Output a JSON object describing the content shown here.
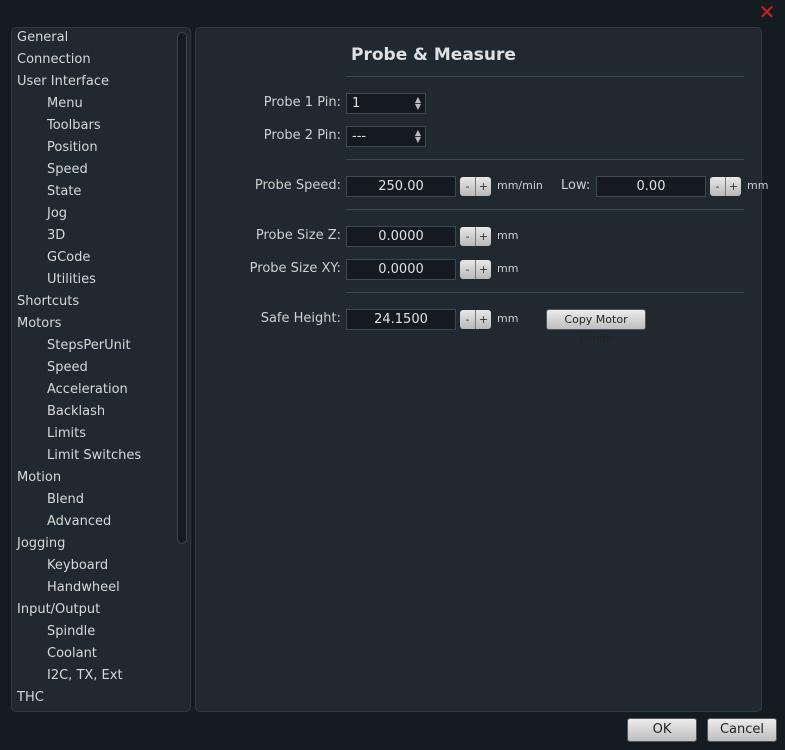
{
  "window": {
    "close_icon": "close-x",
    "close_color": "#d02020"
  },
  "sidebar": {
    "items": [
      {
        "label": "General",
        "sub": false
      },
      {
        "label": "Connection",
        "sub": false
      },
      {
        "label": "User Interface",
        "sub": false
      },
      {
        "label": "Menu",
        "sub": true
      },
      {
        "label": "Toolbars",
        "sub": true
      },
      {
        "label": "Position",
        "sub": true
      },
      {
        "label": "Speed",
        "sub": true
      },
      {
        "label": "State",
        "sub": true
      },
      {
        "label": "Jog",
        "sub": true
      },
      {
        "label": "3D",
        "sub": true
      },
      {
        "label": "GCode",
        "sub": true
      },
      {
        "label": "Utilities",
        "sub": true
      },
      {
        "label": "Shortcuts",
        "sub": false
      },
      {
        "label": "Motors",
        "sub": false
      },
      {
        "label": "StepsPerUnit",
        "sub": true
      },
      {
        "label": "Speed",
        "sub": true
      },
      {
        "label": "Acceleration",
        "sub": true
      },
      {
        "label": "Backlash",
        "sub": true
      },
      {
        "label": "Limits",
        "sub": true
      },
      {
        "label": "Limit Switches",
        "sub": true
      },
      {
        "label": "Motion",
        "sub": false
      },
      {
        "label": "Blend",
        "sub": true
      },
      {
        "label": "Advanced",
        "sub": true
      },
      {
        "label": "Jogging",
        "sub": false
      },
      {
        "label": "Keyboard",
        "sub": true
      },
      {
        "label": "Handwheel",
        "sub": true
      },
      {
        "label": "Input/Output",
        "sub": false
      },
      {
        "label": "Spindle",
        "sub": true
      },
      {
        "label": "Coolant",
        "sub": true
      },
      {
        "label": "I2C, TX, Ext",
        "sub": true
      },
      {
        "label": "THC",
        "sub": false
      }
    ]
  },
  "main": {
    "title": "Probe & Measure",
    "probe1": {
      "label": "Probe 1 Pin:",
      "value": "1"
    },
    "probe2": {
      "label": "Probe 2 Pin:",
      "value": "---"
    },
    "probe_speed": {
      "label": "Probe Speed:",
      "value": "250.00",
      "unit": "mm/min"
    },
    "low": {
      "label": "Low:",
      "value": "0.00",
      "unit": "mm"
    },
    "size_z": {
      "label": "Probe Size Z:",
      "value": "0.0000",
      "unit": "mm"
    },
    "size_xy": {
      "label": "Probe Size XY:",
      "value": "0.0000",
      "unit": "mm"
    },
    "safe_height": {
      "label": "Safe Height:",
      "value": "24.1500",
      "unit": "mm"
    },
    "copy_button": "Copy Motor Limits",
    "minus": "-",
    "plus": "+"
  },
  "footer": {
    "ok": "OK",
    "cancel": "Cancel"
  }
}
